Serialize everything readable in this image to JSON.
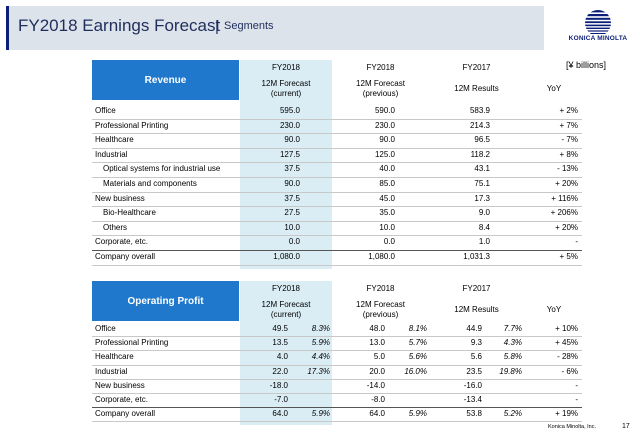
{
  "header": {
    "title": "FY2018 Earnings Forecast",
    "separator": "|",
    "subtitle": "Segments"
  },
  "logo": {
    "text": "KONICA MINOLTA"
  },
  "units": "[¥ billions]",
  "footer": {
    "company": "Konica Minolta, Inc.",
    "page": "17"
  },
  "revenue": {
    "heading": "Revenue",
    "col_years": [
      "FY2018",
      "FY2018",
      "FY2017"
    ],
    "col_labels": [
      "12M Forecast\n(current)",
      "12M Forecast\n(previous)",
      "12M Results",
      "YoY"
    ],
    "rows": [
      {
        "label": "Office",
        "indent": false,
        "current": "595.0",
        "previous": "590.0",
        "results": "583.9",
        "yoy": "+ 2%"
      },
      {
        "label": "Professional Printing",
        "indent": false,
        "current": "230.0",
        "previous": "230.0",
        "results": "214.3",
        "yoy": "+ 7%"
      },
      {
        "label": "Healthcare",
        "indent": false,
        "current": "90.0",
        "previous": "90.0",
        "results": "96.5",
        "yoy": "- 7%"
      },
      {
        "label": "Industrial",
        "indent": false,
        "current": "127.5",
        "previous": "125.0",
        "results": "118.2",
        "yoy": "+ 8%"
      },
      {
        "label": "Optical systems for industrial use",
        "indent": true,
        "current": "37.5",
        "previous": "40.0",
        "results": "43.1",
        "yoy": "- 13%"
      },
      {
        "label": "Materials and components",
        "indent": true,
        "current": "90.0",
        "previous": "85.0",
        "results": "75.1",
        "yoy": "+ 20%"
      },
      {
        "label": "New business",
        "indent": false,
        "current": "37.5",
        "previous": "45.0",
        "results": "17.3",
        "yoy": "+ 116%"
      },
      {
        "label": "Bio-Healthcare",
        "indent": true,
        "current": "27.5",
        "previous": "35.0",
        "results": "9.0",
        "yoy": "+ 206%"
      },
      {
        "label": "Others",
        "indent": true,
        "current": "10.0",
        "previous": "10.0",
        "results": "8.4",
        "yoy": "+ 20%"
      },
      {
        "label": "Corporate, etc.",
        "indent": false,
        "current": "0.0",
        "previous": "0.0",
        "results": "1.0",
        "yoy": "-"
      }
    ],
    "total": {
      "label": "Company overall",
      "current": "1,080.0",
      "previous": "1,080.0",
      "results": "1,031.3",
      "yoy": "+ 5%"
    }
  },
  "operating_profit": {
    "heading": "Operating Profit",
    "col_years": [
      "FY2018",
      "FY2018",
      "FY2017"
    ],
    "col_labels": [
      "12M Forecast\n(current)",
      "12M Forecast\n(previous)",
      "12M Results",
      "YoY"
    ],
    "rows": [
      {
        "label": "Office",
        "current": "49.5",
        "current_pct": "8.3%",
        "previous": "48.0",
        "previous_pct": "8.1%",
        "results": "44.9",
        "results_pct": "7.7%",
        "yoy": "+ 10%"
      },
      {
        "label": "Professional Printing",
        "current": "13.5",
        "current_pct": "5.9%",
        "previous": "13.0",
        "previous_pct": "5.7%",
        "results": "9.3",
        "results_pct": "4.3%",
        "yoy": "+ 45%"
      },
      {
        "label": "Healthcare",
        "current": "4.0",
        "current_pct": "4.4%",
        "previous": "5.0",
        "previous_pct": "5.6%",
        "results": "5.6",
        "results_pct": "5.8%",
        "yoy": "- 28%"
      },
      {
        "label": "Industrial",
        "current": "22.0",
        "current_pct": "17.3%",
        "previous": "20.0",
        "previous_pct": "16.0%",
        "results": "23.5",
        "results_pct": "19.8%",
        "yoy": "- 6%"
      },
      {
        "label": "New business",
        "current": "-18.0",
        "current_pct": "",
        "previous": "-14.0",
        "previous_pct": "",
        "results": "-16.0",
        "results_pct": "",
        "yoy": "-"
      },
      {
        "label": "Corporate, etc.",
        "current": "-7.0",
        "current_pct": "",
        "previous": "-8.0",
        "previous_pct": "",
        "results": "-13.4",
        "results_pct": "",
        "yoy": "-"
      }
    ],
    "total": {
      "label": "Company overall",
      "current": "64.0",
      "current_pct": "5.9%",
      "previous": "64.0",
      "previous_pct": "5.9%",
      "results": "53.8",
      "results_pct": "5.2%",
      "yoy": "+ 19%"
    }
  }
}
